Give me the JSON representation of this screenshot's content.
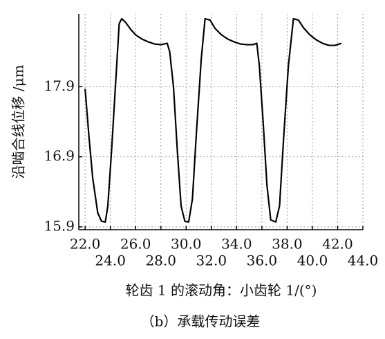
{
  "chart_data": {
    "type": "line",
    "caption": "（b）承载传动误差",
    "x_label": "轮齿 1 的滚动角：小齿轮 1/(°)",
    "y_label": "沿啮合线位移 /μm",
    "x": [
      22.0,
      22.3,
      22.6,
      23.0,
      23.3,
      23.6,
      23.8,
      24.1,
      24.4,
      24.7,
      24.9,
      25.2,
      25.6,
      26.0,
      26.5,
      27.0,
      27.5,
      28.0,
      28.5,
      28.7,
      29.0,
      29.3,
      29.6,
      29.9,
      30.2,
      30.5,
      30.8,
      31.2,
      31.5,
      31.9,
      32.3,
      32.8,
      33.3,
      33.8,
      34.3,
      34.8,
      35.3,
      35.6,
      35.8,
      36.1,
      36.4,
      36.7,
      37.1,
      37.4,
      37.7,
      38.1,
      38.5,
      38.9,
      39.3,
      39.8,
      40.3,
      40.8,
      41.3,
      41.8,
      42.3
    ],
    "values": [
      17.87,
      17.2,
      16.6,
      16.1,
      15.98,
      15.97,
      16.2,
      17.0,
      17.9,
      18.8,
      18.87,
      18.82,
      18.72,
      18.64,
      18.58,
      18.54,
      18.51,
      18.5,
      18.52,
      18.4,
      17.9,
      17.0,
      16.2,
      15.98,
      15.97,
      16.3,
      17.2,
      18.3,
      18.87,
      18.85,
      18.73,
      18.64,
      18.58,
      18.54,
      18.51,
      18.5,
      18.5,
      18.52,
      18.2,
      17.4,
      16.5,
      16.0,
      15.97,
      16.2,
      17.1,
      18.2,
      18.87,
      18.85,
      18.74,
      18.64,
      18.57,
      18.52,
      18.49,
      18.49,
      18.52
    ],
    "color": "#000000",
    "xlim": [
      21.5,
      44.0
    ],
    "ylim": [
      15.86,
      18.94
    ],
    "xticks": [
      {
        "value": 22,
        "label": "22.0"
      },
      {
        "value": 24,
        "label": "24.0"
      },
      {
        "value": 26,
        "label": "26.0"
      },
      {
        "value": 28,
        "label": "28.0"
      },
      {
        "value": 30,
        "label": "30.0"
      },
      {
        "value": 32,
        "label": "32.0"
      },
      {
        "value": 34,
        "label": "34.0"
      },
      {
        "value": 36,
        "label": "36.0"
      },
      {
        "value": 38,
        "label": "38.0"
      },
      {
        "value": 40,
        "label": "40.0"
      },
      {
        "value": 42,
        "label": "42.0"
      },
      {
        "value": 44,
        "label": "44.0"
      }
    ],
    "yticks": [
      15.9,
      16.9,
      17.9
    ],
    "grid": true
  }
}
